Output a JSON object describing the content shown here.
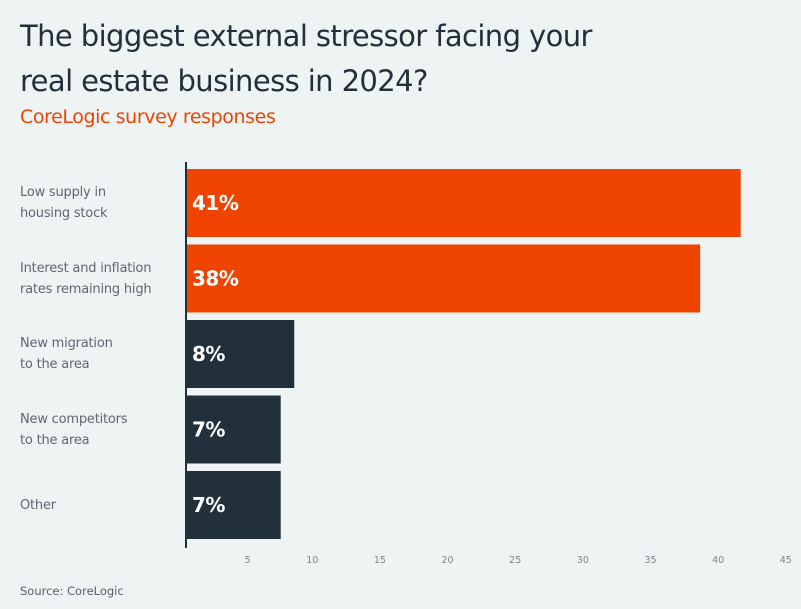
{
  "chart_data": {
    "type": "bar",
    "orientation": "horizontal",
    "title": "The biggest external stressor facing your real estate business in 2024?",
    "title_lines": [
      "The biggest external stressor facing your",
      "real estate business in 2024?"
    ],
    "subtitle": "CoreLogic survey responses",
    "categories": [
      "Low supply in housing stock",
      "Interest and inflation rates remaining high",
      "New migration to the area",
      "New competitors to the area",
      "Other"
    ],
    "category_label_lines": [
      [
        "Low supply in",
        "housing stock"
      ],
      [
        "Interest and inflation",
        "rates remaining high"
      ],
      [
        "New migration",
        "to the area"
      ],
      [
        "New competitors",
        "to the area"
      ],
      [
        "Other"
      ]
    ],
    "values": [
      41,
      38,
      8,
      7,
      7
    ],
    "data_labels": [
      "41%",
      "38%",
      "8%",
      "7%",
      "7%"
    ],
    "bar_colors": [
      "#ee4400",
      "#ee4400",
      "#22303c",
      "#22303c",
      "#22303c"
    ],
    "xlabel": "",
    "ylabel": "",
    "xlim": [
      0,
      45
    ],
    "xticks": [
      5,
      10,
      15,
      20,
      25,
      30,
      35,
      40,
      45
    ],
    "grid": false,
    "legend": "none",
    "source": "Source: CoreLogic"
  },
  "colors": {
    "accent": "#ee4400",
    "dark": "#22303c",
    "background": "#eef4f4"
  }
}
